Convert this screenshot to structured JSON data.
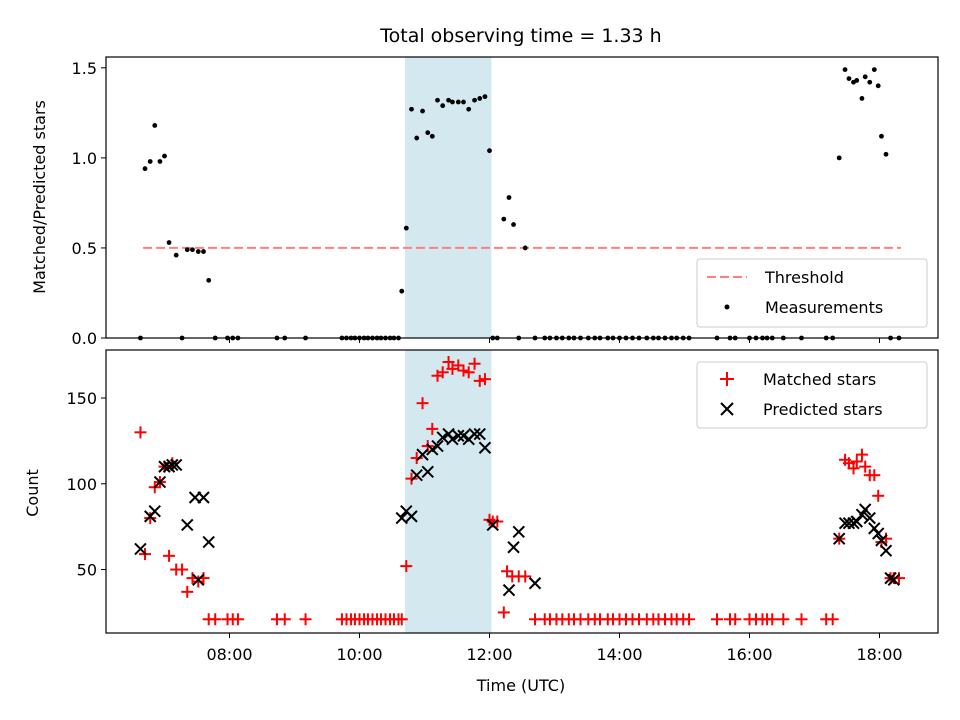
{
  "chart_data": [
    {
      "type": "scatter",
      "title": "Total observing time = 1.33 h",
      "xlabel": "",
      "ylabel": "Matched/Predicted stars",
      "xlim": [
        6.1,
        18.9
      ],
      "ylim": [
        0,
        1.56
      ],
      "yticks": [
        0.0,
        0.5,
        1.0,
        1.5
      ],
      "ytick_labels": [
        "0.0",
        "0.5",
        "1.0",
        "1.5"
      ],
      "xticks": [
        8,
        10,
        12,
        14,
        16,
        18
      ],
      "shaded_span": {
        "x0": 10.7,
        "x1": 12.03,
        "color": "#d3e9ef"
      },
      "threshold": {
        "name": "Threshold",
        "y": 0.5,
        "x0": 6.67,
        "x1": 18.33,
        "color": "#ff7f7f"
      },
      "legend": {
        "position": "lower right",
        "entries": [
          "Threshold",
          "Measurements"
        ]
      },
      "series": [
        {
          "name": "Measurements",
          "marker": "dot",
          "color": "#000000",
          "x": [
            6.63,
            6.7,
            6.78,
            6.85,
            6.93,
            7.0,
            7.07,
            7.18,
            7.27,
            7.35,
            7.43,
            7.52,
            7.6,
            7.68,
            7.78,
            7.97,
            8.05,
            8.13,
            8.73,
            8.85,
            9.17,
            9.73,
            9.8,
            9.87,
            9.93,
            10.0,
            10.07,
            10.13,
            10.2,
            10.27,
            10.33,
            10.4,
            10.47,
            10.53,
            10.6,
            10.65,
            10.72,
            10.8,
            10.88,
            10.97,
            11.05,
            11.12,
            11.2,
            11.28,
            11.37,
            11.43,
            11.52,
            11.6,
            11.68,
            11.77,
            11.85,
            11.93,
            12.0,
            12.05,
            12.12,
            12.22,
            12.3,
            12.37,
            12.45,
            12.55,
            12.7,
            12.85,
            12.93,
            13.03,
            13.12,
            13.22,
            13.3,
            13.4,
            13.52,
            13.62,
            13.7,
            13.82,
            13.9,
            14.0,
            14.1,
            14.2,
            14.3,
            14.42,
            14.52,
            14.6,
            14.7,
            14.8,
            14.88,
            14.98,
            15.07,
            15.5,
            15.7,
            15.78,
            16.0,
            16.1,
            16.2,
            16.27,
            16.35,
            16.52,
            16.8,
            17.18,
            17.28,
            17.38,
            17.47,
            17.53,
            17.6,
            17.65,
            17.73,
            17.78,
            17.85,
            17.92,
            17.98,
            18.03,
            18.1,
            18.17,
            18.3
          ],
          "y": [
            0.0,
            0.94,
            0.98,
            1.18,
            0.98,
            1.01,
            0.53,
            0.46,
            0.0,
            0.49,
            0.49,
            0.48,
            0.48,
            0.32,
            0.0,
            0.0,
            0.0,
            0.0,
            0.0,
            0.0,
            0.0,
            0.0,
            0.0,
            0.0,
            0.0,
            0.0,
            0.0,
            0.0,
            0.0,
            0.0,
            0.0,
            0.0,
            0.0,
            0.0,
            0.0,
            0.26,
            0.61,
            1.27,
            1.11,
            1.26,
            1.14,
            1.12,
            1.32,
            1.29,
            1.32,
            1.31,
            1.31,
            1.31,
            1.27,
            1.32,
            1.33,
            1.34,
            1.04,
            0.0,
            0.0,
            0.66,
            0.78,
            0.63,
            0.0,
            0.5,
            0.0,
            0.0,
            0.0,
            0.0,
            0.0,
            0.0,
            0.0,
            0.0,
            0.0,
            0.0,
            0.0,
            0.0,
            0.0,
            0.0,
            0.0,
            0.0,
            0.0,
            0.0,
            0.0,
            0.0,
            0.0,
            0.0,
            0.0,
            0.0,
            0.0,
            0.0,
            0.0,
            0.0,
            0.0,
            0.0,
            0.0,
            0.0,
            0.0,
            0.0,
            0.0,
            0.0,
            0.0,
            1.0,
            1.49,
            1.44,
            1.42,
            1.43,
            1.33,
            1.45,
            1.42,
            1.49,
            1.4,
            1.12,
            1.02,
            0.0,
            0.0
          ]
        }
      ]
    },
    {
      "type": "scatter",
      "title": "",
      "xlabel": "Time (UTC)",
      "ylabel": "Count",
      "xlim": [
        6.1,
        18.9
      ],
      "ylim": [
        13,
        178
      ],
      "yticks": [
        50,
        100,
        150
      ],
      "ytick_labels": [
        "50",
        "100",
        "150"
      ],
      "xticks": [
        8,
        10,
        12,
        14,
        16,
        18
      ],
      "xtick_labels": [
        "08:00",
        "10:00",
        "12:00",
        "14:00",
        "16:00",
        "18:00"
      ],
      "shaded_span": {
        "x0": 10.7,
        "x1": 12.03,
        "color": "#d3e9ef"
      },
      "legend": {
        "position": "upper right",
        "entries": [
          "Matched stars",
          "Predicted stars"
        ]
      },
      "series": [
        {
          "name": "Matched stars",
          "marker": "plus",
          "color": "#ff0000",
          "x": [
            6.63,
            6.7,
            6.78,
            6.85,
            6.93,
            7.0,
            7.07,
            7.12,
            7.18,
            7.27,
            7.35,
            7.43,
            7.52,
            7.6,
            7.68,
            7.78,
            7.97,
            8.05,
            8.13,
            8.73,
            8.85,
            9.17,
            9.73,
            9.8,
            9.87,
            9.93,
            10.0,
            10.07,
            10.13,
            10.2,
            10.27,
            10.33,
            10.4,
            10.47,
            10.53,
            10.6,
            10.65,
            10.72,
            10.8,
            10.88,
            10.97,
            11.05,
            11.12,
            11.2,
            11.28,
            11.37,
            11.43,
            11.52,
            11.6,
            11.68,
            11.77,
            11.85,
            11.93,
            12.0,
            12.05,
            12.12,
            12.22,
            12.27,
            12.35,
            12.45,
            12.55,
            12.7,
            12.85,
            12.93,
            13.03,
            13.12,
            13.22,
            13.3,
            13.4,
            13.52,
            13.62,
            13.7,
            13.82,
            13.9,
            14.0,
            14.1,
            14.2,
            14.3,
            14.42,
            14.52,
            14.6,
            14.7,
            14.8,
            14.88,
            14.98,
            15.07,
            15.5,
            15.7,
            15.78,
            16.0,
            16.1,
            16.2,
            16.27,
            16.35,
            16.52,
            16.8,
            17.18,
            17.28,
            17.38,
            17.47,
            17.53,
            17.6,
            17.65,
            17.73,
            17.78,
            17.85,
            17.92,
            17.98,
            18.03,
            18.1,
            18.17,
            18.22,
            18.3
          ],
          "y": [
            130,
            59,
            80,
            98,
            101,
            110,
            58,
            112,
            50,
            50,
            37,
            45,
            43,
            45,
            21,
            21,
            21,
            21,
            21,
            21,
            21,
            21,
            21,
            21,
            21,
            21,
            21,
            21,
            21,
            21,
            21,
            21,
            21,
            21,
            21,
            21,
            21,
            52,
            103,
            115,
            147,
            122,
            132,
            163,
            165,
            171,
            167,
            169,
            166,
            165,
            170,
            160,
            161,
            79,
            78,
            78,
            25,
            49,
            46,
            46,
            46,
            21,
            21,
            21,
            21,
            21,
            21,
            21,
            21,
            21,
            21,
            21,
            21,
            21,
            21,
            21,
            21,
            21,
            21,
            21,
            21,
            21,
            21,
            21,
            21,
            21,
            21,
            21,
            21,
            21,
            21,
            21,
            21,
            21,
            21,
            21,
            21,
            21,
            68,
            114,
            112,
            109,
            113,
            117,
            110,
            105,
            105,
            93,
            66,
            68,
            45,
            45,
            45
          ]
        },
        {
          "name": "Predicted stars",
          "marker": "x",
          "color": "#000000",
          "x": [
            6.63,
            6.78,
            6.85,
            6.93,
            7.0,
            7.07,
            7.12,
            7.18,
            7.35,
            7.47,
            7.52,
            7.6,
            7.68,
            10.65,
            10.72,
            10.8,
            10.88,
            10.97,
            11.05,
            11.12,
            11.2,
            11.28,
            11.37,
            11.43,
            11.52,
            11.6,
            11.68,
            11.77,
            11.85,
            11.93,
            12.05,
            12.3,
            12.37,
            12.45,
            12.7,
            17.38,
            17.47,
            17.53,
            17.6,
            17.65,
            17.73,
            17.78,
            17.85,
            17.92,
            17.98,
            18.03,
            18.1,
            18.17,
            18.22
          ],
          "y": [
            62,
            81,
            84,
            101,
            110,
            110,
            111,
            111,
            76,
            92,
            44,
            92,
            66,
            80,
            84,
            81,
            105,
            117,
            107,
            120,
            122,
            127,
            129,
            126,
            128,
            128,
            126,
            129,
            129,
            121,
            76,
            38,
            63,
            72,
            42,
            68,
            77,
            77,
            77,
            78,
            82,
            85,
            80,
            74,
            71,
            67,
            61,
            45,
            44
          ]
        }
      ]
    }
  ]
}
